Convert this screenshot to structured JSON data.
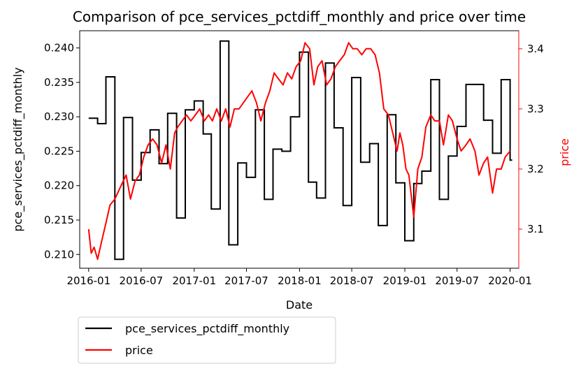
{
  "chart_data": {
    "type": "line",
    "title": "Comparison of pce_services_pctdiff_monthly and price over time",
    "xlabel": "Date",
    "ylabel": "pce_services_pctdiff_monthly",
    "y2label": "price",
    "xlim": [
      "2015-12-01",
      "2020-01-31"
    ],
    "ylim": [
      0.208,
      0.2425
    ],
    "y2lim": [
      3.035,
      3.43
    ],
    "x_ticks": [
      "2016-01",
      "2016-07",
      "2017-01",
      "2017-07",
      "2018-01",
      "2018-07",
      "2019-01",
      "2019-07",
      "2020-01"
    ],
    "y_ticks": [
      "0.210",
      "0.215",
      "0.220",
      "0.225",
      "0.230",
      "0.235",
      "0.240"
    ],
    "y2_ticks": [
      "3.1",
      "3.2",
      "3.3",
      "3.4"
    ],
    "legend_position": "below-left",
    "grid": false,
    "colors": {
      "pce": "#000000",
      "price": "#ff0000"
    },
    "series": [
      {
        "name": "pce_services_pctdiff_monthly",
        "axis": "left",
        "color": "#000000",
        "step": true,
        "x": [
          "2016-01-01",
          "2016-02-01",
          "2016-03-01",
          "2016-04-01",
          "2016-05-01",
          "2016-06-01",
          "2016-07-01",
          "2016-08-01",
          "2016-09-01",
          "2016-10-01",
          "2016-11-01",
          "2016-12-01",
          "2017-01-01",
          "2017-02-01",
          "2017-03-01",
          "2017-04-01",
          "2017-05-01",
          "2017-06-01",
          "2017-07-01",
          "2017-08-01",
          "2017-09-01",
          "2017-10-01",
          "2017-11-01",
          "2017-12-01",
          "2018-01-01",
          "2018-02-01",
          "2018-03-01",
          "2018-04-01",
          "2018-05-01",
          "2018-06-01",
          "2018-07-01",
          "2018-08-01",
          "2018-09-01",
          "2018-10-01",
          "2018-11-01",
          "2018-12-01",
          "2019-01-01",
          "2019-02-01",
          "2019-03-01",
          "2019-04-01",
          "2019-05-01",
          "2019-06-01",
          "2019-07-01",
          "2019-08-01",
          "2019-09-01",
          "2019-10-01",
          "2019-11-01",
          "2019-12-01",
          "2020-01-01"
        ],
        "values": [
          0.2298,
          0.229,
          0.2358,
          0.2093,
          0.2299,
          0.2208,
          0.2248,
          0.2281,
          0.2232,
          0.2305,
          0.2153,
          0.231,
          0.2323,
          0.2275,
          0.2166,
          0.241,
          0.2114,
          0.2233,
          0.2212,
          0.231,
          0.218,
          0.2253,
          0.225,
          0.23,
          0.2394,
          0.2205,
          0.2182,
          0.2378,
          0.2284,
          0.2171,
          0.2357,
          0.2234,
          0.2261,
          0.2142,
          0.2303,
          0.2204,
          0.212,
          0.2203,
          0.2221,
          0.2354,
          0.218,
          0.2243,
          0.2286,
          0.2347,
          0.2347,
          0.2295,
          0.2247,
          0.2354,
          0.2237
        ]
      },
      {
        "name": "price",
        "axis": "right",
        "color": "#ff0000",
        "step": false,
        "x": [
          "2016-01-01",
          "2016-01-10",
          "2016-01-20",
          "2016-02-01",
          "2016-02-15",
          "2016-03-01",
          "2016-03-15",
          "2016-04-01",
          "2016-04-20",
          "2016-05-10",
          "2016-05-25",
          "2016-06-10",
          "2016-06-25",
          "2016-07-10",
          "2016-07-25",
          "2016-08-10",
          "2016-08-25",
          "2016-09-10",
          "2016-09-25",
          "2016-10-10",
          "2016-10-25",
          "2016-11-05",
          "2016-11-20",
          "2016-12-05",
          "2016-12-20",
          "2017-01-05",
          "2017-01-20",
          "2017-02-05",
          "2017-02-20",
          "2017-03-05",
          "2017-03-20",
          "2017-04-05",
          "2017-04-20",
          "2017-05-05",
          "2017-05-20",
          "2017-06-05",
          "2017-06-20",
          "2017-07-05",
          "2017-07-20",
          "2017-08-05",
          "2017-08-20",
          "2017-09-05",
          "2017-09-20",
          "2017-10-05",
          "2017-10-20",
          "2017-11-05",
          "2017-11-20",
          "2017-12-05",
          "2017-12-20",
          "2018-01-05",
          "2018-01-20",
          "2018-02-05",
          "2018-02-20",
          "2018-03-05",
          "2018-03-20",
          "2018-04-05",
          "2018-04-20",
          "2018-05-05",
          "2018-05-20",
          "2018-06-05",
          "2018-06-20",
          "2018-07-05",
          "2018-07-20",
          "2018-08-05",
          "2018-08-20",
          "2018-09-05",
          "2018-09-20",
          "2018-10-05",
          "2018-10-20",
          "2018-11-05",
          "2018-11-20",
          "2018-12-05",
          "2018-12-15",
          "2018-12-25",
          "2019-01-05",
          "2019-01-15",
          "2019-02-01",
          "2019-02-15",
          "2019-03-01",
          "2019-03-15",
          "2019-04-01",
          "2019-04-15",
          "2019-05-01",
          "2019-05-15",
          "2019-06-01",
          "2019-06-15",
          "2019-07-01",
          "2019-07-15",
          "2019-08-01",
          "2019-08-15",
          "2019-09-01",
          "2019-09-15",
          "2019-10-01",
          "2019-10-15",
          "2019-11-01",
          "2019-11-15",
          "2019-12-01",
          "2019-12-15",
          "2020-01-01"
        ],
        "values": [
          3.1,
          3.06,
          3.07,
          3.05,
          3.08,
          3.11,
          3.14,
          3.15,
          3.17,
          3.19,
          3.15,
          3.18,
          3.19,
          3.22,
          3.24,
          3.25,
          3.24,
          3.21,
          3.24,
          3.2,
          3.26,
          3.27,
          3.28,
          3.29,
          3.28,
          3.29,
          3.3,
          3.28,
          3.29,
          3.28,
          3.3,
          3.28,
          3.3,
          3.27,
          3.3,
          3.3,
          3.31,
          3.32,
          3.33,
          3.31,
          3.28,
          3.31,
          3.33,
          3.36,
          3.35,
          3.34,
          3.36,
          3.35,
          3.37,
          3.38,
          3.41,
          3.4,
          3.34,
          3.37,
          3.38,
          3.34,
          3.35,
          3.37,
          3.38,
          3.39,
          3.41,
          3.4,
          3.4,
          3.39,
          3.4,
          3.4,
          3.39,
          3.36,
          3.3,
          3.29,
          3.26,
          3.23,
          3.26,
          3.24,
          3.2,
          3.19,
          3.12,
          3.2,
          3.22,
          3.27,
          3.29,
          3.28,
          3.28,
          3.24,
          3.29,
          3.28,
          3.25,
          3.23,
          3.24,
          3.25,
          3.23,
          3.19,
          3.21,
          3.22,
          3.16,
          3.2,
          3.2,
          3.22,
          3.23
        ]
      }
    ]
  }
}
